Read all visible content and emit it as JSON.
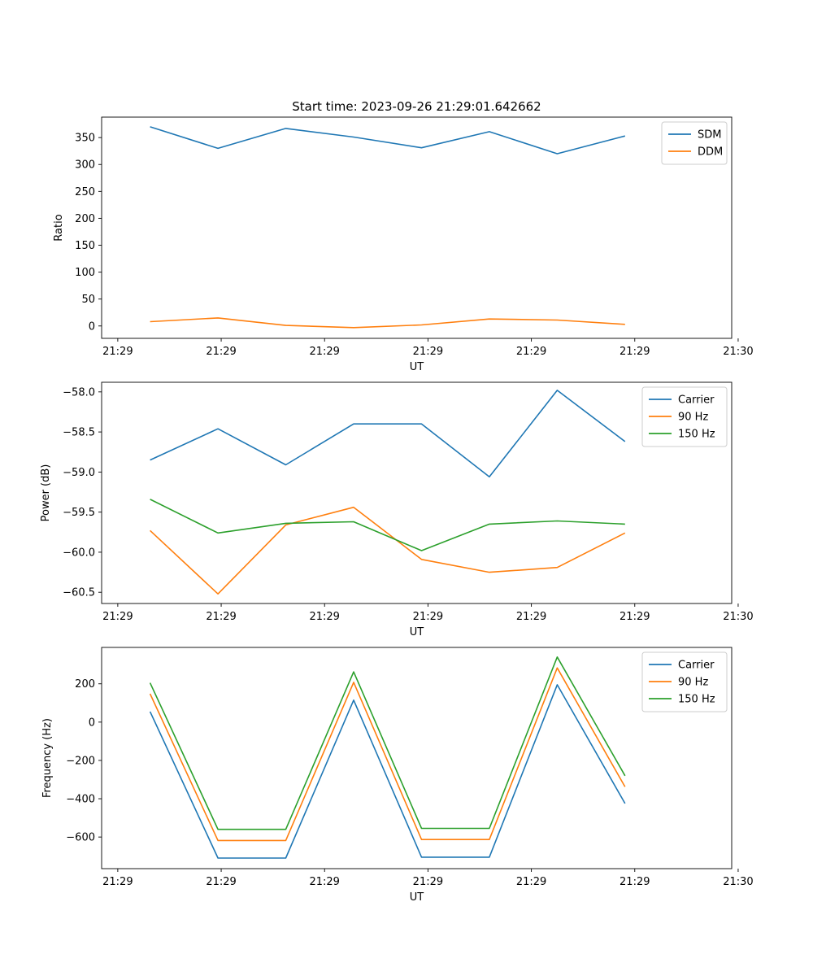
{
  "figure_title": "Start time: 2023-09-26 21:29:01.642662",
  "colors": {
    "blue": "#1f77b4",
    "orange": "#ff7f0e",
    "green": "#2ca02c",
    "axis": "#000000",
    "legend_border": "#cccccc"
  },
  "chart_data": [
    {
      "type": "line",
      "title": "Start time: 2023-09-26 21:29:01.642662",
      "xlabel": "UT",
      "ylabel": "Ratio",
      "x": [
        0.05,
        0.155,
        0.26,
        0.365,
        0.47,
        0.575,
        0.68,
        0.785
      ],
      "xlim": [
        -0.025,
        0.95
      ],
      "xticks": [
        0,
        0.16,
        0.32,
        0.48,
        0.64,
        0.8,
        0.96
      ],
      "xticklabels": [
        "21:29",
        "21:29",
        "21:29",
        "21:29",
        "21:29",
        "21:29",
        "21:30"
      ],
      "ylim": [
        -23,
        388
      ],
      "yticks": [
        0,
        50,
        100,
        150,
        200,
        250,
        300,
        350
      ],
      "yticklabels": [
        "0",
        "50",
        "100",
        "150",
        "200",
        "250",
        "300",
        "350"
      ],
      "legend_position": "top-right",
      "series": [
        {
          "name": "SDM",
          "color": "#1f77b4",
          "values": [
            370,
            330,
            367,
            351,
            331,
            361,
            320,
            353
          ]
        },
        {
          "name": "DDM",
          "color": "#ff7f0e",
          "values": [
            8,
            15,
            1,
            -3,
            2,
            13,
            11,
            3
          ]
        }
      ]
    },
    {
      "type": "line",
      "xlabel": "UT",
      "ylabel": "Power (dB)",
      "x": [
        0.05,
        0.155,
        0.26,
        0.365,
        0.47,
        0.575,
        0.68,
        0.785
      ],
      "xlim": [
        -0.025,
        0.95
      ],
      "xticks": [
        0,
        0.16,
        0.32,
        0.48,
        0.64,
        0.8,
        0.96
      ],
      "xticklabels": [
        "21:29",
        "21:29",
        "21:29",
        "21:29",
        "21:29",
        "21:29",
        "21:30"
      ],
      "ylim": [
        -60.64,
        -57.88
      ],
      "yticks": [
        -58.0,
        -58.5,
        -59.0,
        -59.5,
        -60.0,
        -60.5
      ],
      "yticklabels": [
        "−58.0",
        "−58.5",
        "−59.0",
        "−59.5",
        "−60.0",
        "−60.5"
      ],
      "legend_position": "top-right",
      "series": [
        {
          "name": "Carrier",
          "color": "#1f77b4",
          "values": [
            -58.85,
            -58.46,
            -58.91,
            -58.4,
            -58.4,
            -59.06,
            -57.98,
            -58.62
          ]
        },
        {
          "name": "90 Hz",
          "color": "#ff7f0e",
          "values": [
            -59.73,
            -60.52,
            -59.66,
            -59.44,
            -60.09,
            -60.25,
            -60.19,
            -59.76
          ]
        },
        {
          "name": "150 Hz",
          "color": "#2ca02c",
          "values": [
            -59.34,
            -59.76,
            -59.64,
            -59.62,
            -59.98,
            -59.65,
            -59.61,
            -59.65
          ]
        }
      ]
    },
    {
      "type": "line",
      "xlabel": "UT",
      "ylabel": "Frequency (Hz)",
      "x": [
        0.05,
        0.155,
        0.26,
        0.365,
        0.47,
        0.575,
        0.68,
        0.785
      ],
      "xlim": [
        -0.025,
        0.95
      ],
      "xticks": [
        0,
        0.16,
        0.32,
        0.48,
        0.64,
        0.8,
        0.96
      ],
      "xticklabels": [
        "21:29",
        "21:29",
        "21:29",
        "21:29",
        "21:29",
        "21:29",
        "21:30"
      ],
      "ylim": [
        -765,
        390
      ],
      "yticks": [
        200,
        0,
        -200,
        -400,
        -600
      ],
      "yticklabels": [
        "200",
        "0",
        "−200",
        "−400",
        "−600"
      ],
      "legend_position": "top-right",
      "series": [
        {
          "name": "Carrier",
          "color": "#1f77b4",
          "values": [
            55,
            -710,
            -710,
            115,
            -705,
            -705,
            195,
            -425
          ]
        },
        {
          "name": "90 Hz",
          "color": "#ff7f0e",
          "values": [
            148,
            -618,
            -618,
            208,
            -613,
            -613,
            283,
            -338
          ]
        },
        {
          "name": "150 Hz",
          "color": "#2ca02c",
          "values": [
            205,
            -560,
            -560,
            262,
            -555,
            -555,
            340,
            -280
          ]
        }
      ]
    }
  ]
}
